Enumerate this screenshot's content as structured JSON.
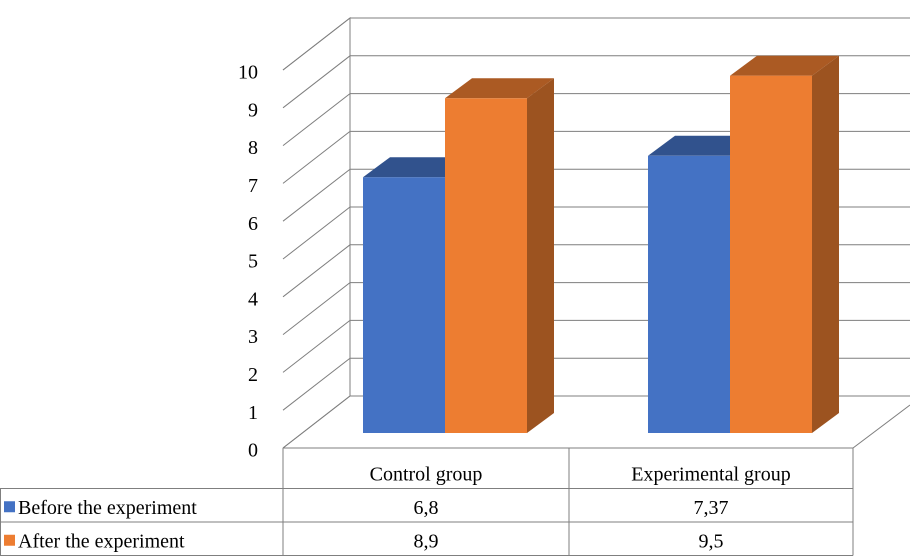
{
  "chart_data": {
    "type": "bar3d",
    "categories": [
      "Control group",
      "Experimental group"
    ],
    "series": [
      {
        "name": "Before the experiment",
        "color": "#4472c4",
        "values": [
          6.8,
          7.37
        ],
        "value_labels": [
          "6,8",
          "7,37"
        ]
      },
      {
        "name": "After the experiment",
        "color": "#ed7d31",
        "values": [
          8.9,
          9.5
        ],
        "value_labels": [
          "8,9",
          "9,5"
        ]
      }
    ],
    "ylim": [
      0,
      10
    ],
    "yticks": [
      0,
      1,
      2,
      3,
      4,
      5,
      6,
      7,
      8,
      9,
      10
    ],
    "grid": true,
    "data_table": true
  }
}
